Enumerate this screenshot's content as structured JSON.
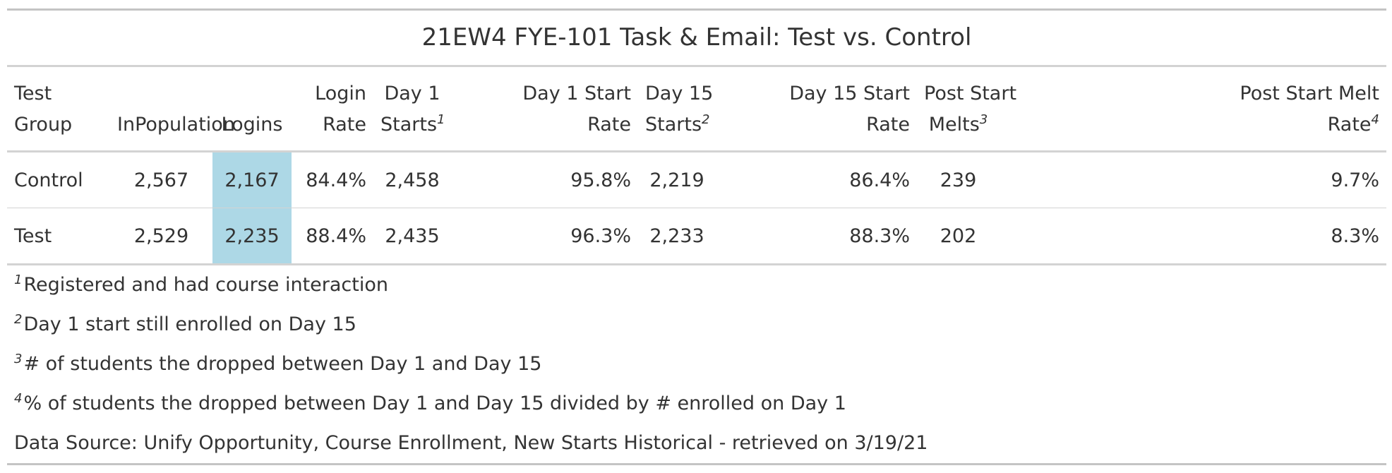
{
  "title": "21EW4 FYE-101 Task & Email: Test vs. Control",
  "colors": {
    "highlight": "#add8e6"
  },
  "columns": {
    "test_group": [
      "Test",
      "Group"
    ],
    "in_population": "InPopulation",
    "logins": "Logins",
    "login_rate": [
      "Login",
      "Rate"
    ],
    "day1_starts": [
      "Day 1",
      "Starts"
    ],
    "day1_start_rate": [
      "Day 1 Start",
      "Rate"
    ],
    "day15_starts": [
      "Day 15",
      "Starts"
    ],
    "day15_start_rate": [
      "Day 15 Start",
      "Rate"
    ],
    "post_start_melts": [
      "Post Start",
      "Melts"
    ],
    "post_start_melt_rate": [
      "Post Start Melt",
      "Rate"
    ],
    "marks": {
      "day1_starts": "1",
      "day15_starts": "2",
      "post_start_melts": "3",
      "post_start_melt_rate": "4"
    }
  },
  "rows": [
    {
      "group": "Control",
      "in_population": "2,567",
      "logins": "2,167",
      "login_rate": "84.4%",
      "day1_starts": "2,458",
      "day1_start_rate": "95.8%",
      "day15_starts": "2,219",
      "day15_start_rate": "86.4%",
      "post_start_melts": "239",
      "post_start_melt_rate": "9.7%"
    },
    {
      "group": "Test",
      "in_population": "2,529",
      "logins": "2,235",
      "login_rate": "88.4%",
      "day1_starts": "2,435",
      "day1_start_rate": "96.3%",
      "day15_starts": "2,233",
      "day15_start_rate": "88.3%",
      "post_start_melts": "202",
      "post_start_melt_rate": "8.3%"
    }
  ],
  "footnotes": [
    {
      "mark": "1",
      "text": "Registered and had course interaction"
    },
    {
      "mark": "2",
      "text": "Day 1 start still enrolled on Day 15"
    },
    {
      "mark": "3",
      "text": "# of students the dropped between Day 1 and Day 15"
    },
    {
      "mark": "4",
      "text": "% of students the dropped between Day 1 and Day 15 divided by # enrolled on Day 1"
    }
  ],
  "source_note": "Data Source: Unify Opportunity, Course Enrollment, New Starts Historical - retrieved on 3/19/21",
  "chart_data": {
    "type": "table",
    "title": "21EW4 FYE-101 Task & Email: Test vs. Control",
    "columns": [
      "Test Group",
      "InPopulation",
      "Logins",
      "Login Rate",
      "Day 1 Starts",
      "Day 1 Start Rate",
      "Day 15 Starts",
      "Day 15 Start Rate",
      "Post Start Melts",
      "Post Start Melt Rate"
    ],
    "rows": [
      [
        "Control",
        2567,
        2167,
        84.4,
        2458,
        95.8,
        2219,
        86.4,
        239,
        9.7
      ],
      [
        "Test",
        2529,
        2235,
        88.4,
        2435,
        96.3,
        2233,
        88.3,
        202,
        8.3
      ]
    ],
    "highlighted_column": "Logins"
  }
}
